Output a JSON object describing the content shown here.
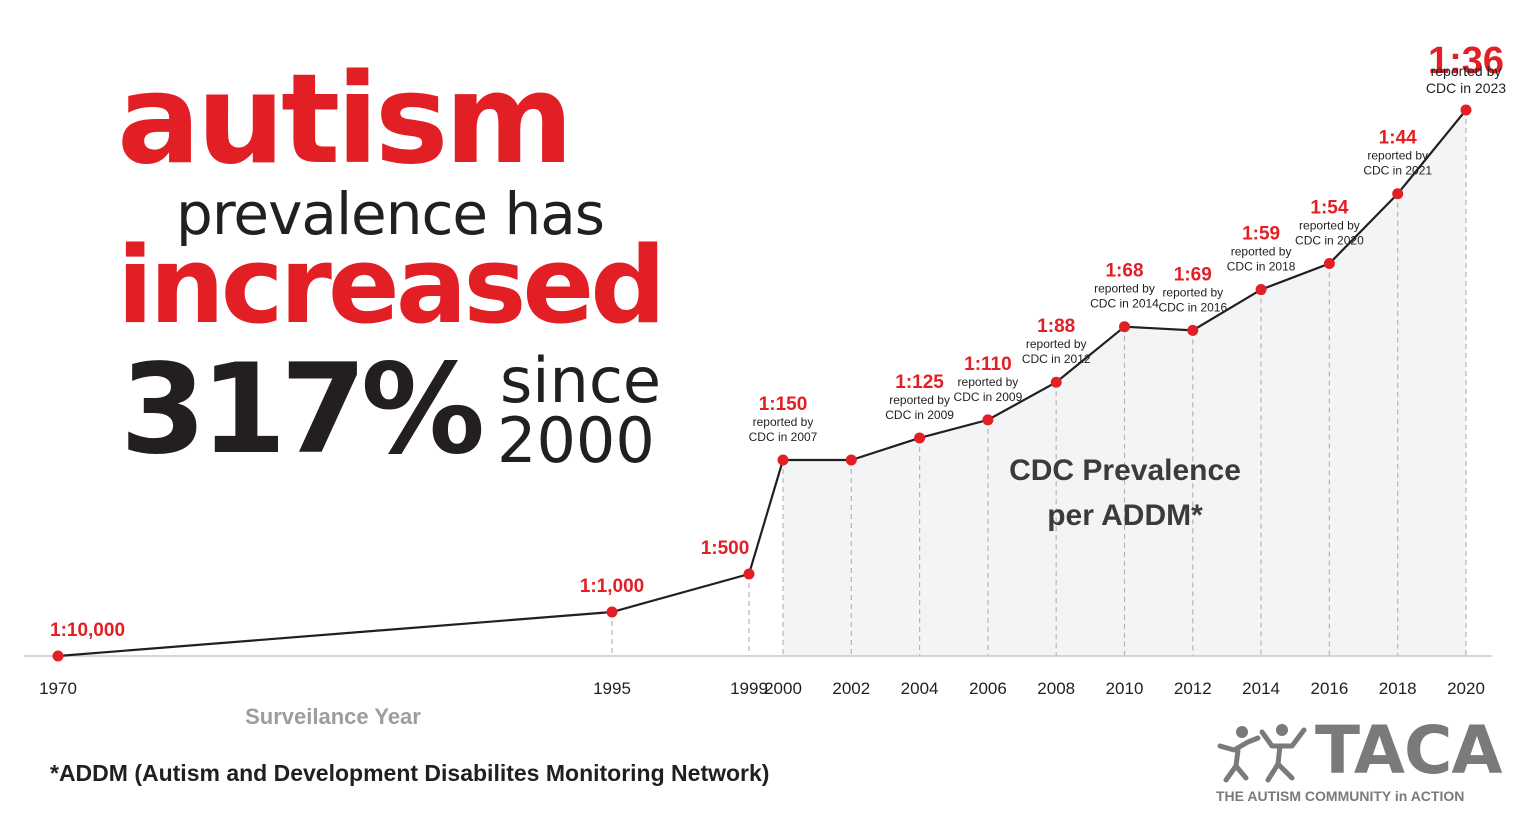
{
  "headline": {
    "line1": "autism",
    "line2": "prevalence has",
    "line3": "increased",
    "percent": "317%",
    "since": "since",
    "since_year": "2000"
  },
  "chart_data": {
    "type": "line",
    "title": "CDC Prevalence per ADDM*",
    "xlabel": "Surveilance Year",
    "ylabel": "",
    "x_ticks": [
      "1970",
      "1995",
      "1999",
      "2000",
      "2002",
      "2004",
      "2006",
      "2008",
      "2010",
      "2012",
      "2014",
      "2016",
      "2018",
      "2020"
    ],
    "points": [
      {
        "year": 1970,
        "ratio": "1:10,000",
        "per_10000": 1,
        "note": ""
      },
      {
        "year": 1995,
        "ratio": "1:1,000",
        "per_10000": 10,
        "note": ""
      },
      {
        "year": 1999,
        "ratio": "1:500",
        "per_10000": 20,
        "note": ""
      },
      {
        "year": 2000,
        "ratio": "1:150",
        "per_10000": 66.7,
        "note": "reported by CDC in 2007"
      },
      {
        "year": 2002,
        "ratio": "",
        "per_10000": 66.7,
        "note": ""
      },
      {
        "year": 2004,
        "ratio": "1:125",
        "per_10000": 80,
        "note": "reported by CDC in 2009"
      },
      {
        "year": 2006,
        "ratio": "1:110",
        "per_10000": 90.9,
        "note": "reported by CDC in 2009"
      },
      {
        "year": 2008,
        "ratio": "1:88",
        "per_10000": 113.6,
        "note": "reported by CDC in 2012"
      },
      {
        "year": 2010,
        "ratio": "1:68",
        "per_10000": 147.1,
        "note": "reported by CDC in 2014"
      },
      {
        "year": 2012,
        "ratio": "1:69",
        "per_10000": 144.9,
        "note": "reported by CDC in 2016"
      },
      {
        "year": 2014,
        "ratio": "1:59",
        "per_10000": 169.5,
        "note": "reported by CDC in 2018"
      },
      {
        "year": 2016,
        "ratio": "1:54",
        "per_10000": 185.2,
        "note": "reported by CDC in 2020"
      },
      {
        "year": 2018,
        "ratio": "1:44",
        "per_10000": 227.3,
        "note": "reported by CDC in 2021"
      },
      {
        "year": 2020,
        "ratio": "1:36",
        "per_10000": 277.8,
        "note": "reported by CDC in 2023"
      }
    ],
    "grid": false,
    "shaded_from_year": 2000,
    "colors": {
      "line": "#231f20",
      "point": "#e31f26",
      "label": "#e31f26",
      "axis_text": "#231f20",
      "xlabel": "#9d9d9d",
      "fill": "#f3f4f6",
      "dashes": "#b5b5b5"
    }
  },
  "footnote": "*ADDM (Autism and Development Disabilites Monitoring Network)",
  "logo": {
    "word": "TACA",
    "tagline": "THE AUTISM COMMUNITY in ACTION",
    "icon": "people-figures-icon",
    "color": "#7a7a7a"
  }
}
